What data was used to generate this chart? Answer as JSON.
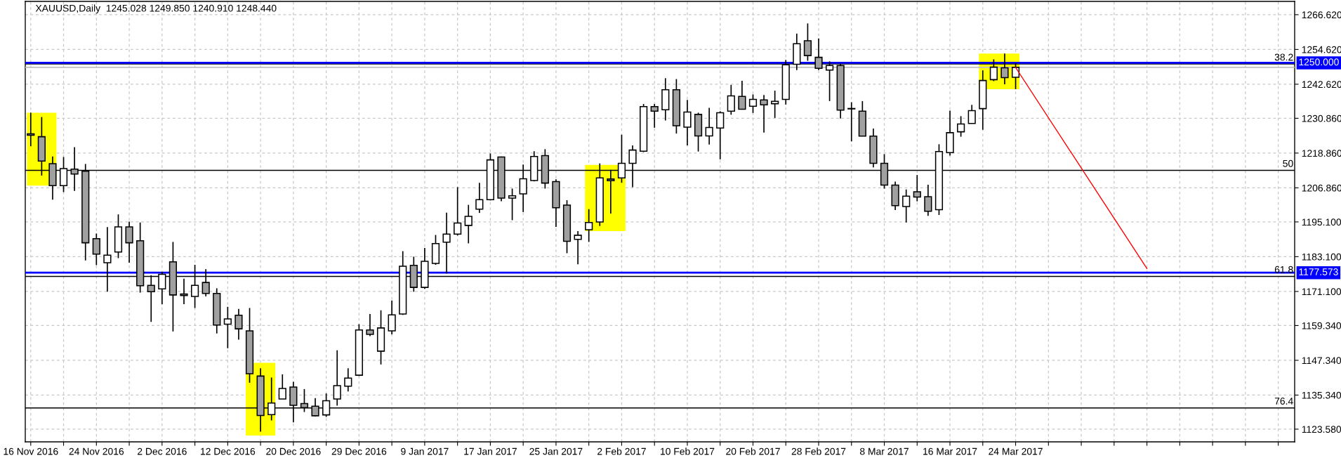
{
  "chart_data": {
    "type": "candlestick",
    "title": "XAUUSD,Daily  1245.028 1249.850 1240.910 1248.440",
    "categories": [
      "16 Nov 2016",
      null,
      null,
      null,
      null,
      null,
      "24 Nov 2016",
      null,
      null,
      null,
      null,
      null,
      "2 Dec 2016",
      null,
      null,
      null,
      null,
      null,
      "12 Dec 2016",
      null,
      null,
      null,
      null,
      null,
      "20 Dec 2016",
      null,
      null,
      null,
      null,
      null,
      "29 Dec 2016",
      null,
      null,
      null,
      null,
      null,
      "9 Jan 2017",
      null,
      null,
      null,
      null,
      null,
      "17 Jan 2017",
      null,
      null,
      null,
      null,
      null,
      "25 Jan 2017",
      null,
      null,
      null,
      null,
      null,
      "2 Feb 2017",
      null,
      null,
      null,
      null,
      null,
      "10 Feb 2017",
      null,
      null,
      null,
      null,
      null,
      "20 Feb 2017",
      null,
      null,
      null,
      null,
      null,
      "28 Feb 2017",
      null,
      null,
      null,
      null,
      null,
      "8 Mar 2017",
      null,
      null,
      null,
      null,
      null,
      "16 Mar 2017",
      null,
      null,
      null,
      null,
      null,
      "24 Mar 2017",
      null,
      null,
      null,
      null,
      null,
      null,
      null,
      null,
      null,
      null,
      null,
      null,
      null,
      null,
      null,
      null,
      null,
      null,
      null,
      null,
      null,
      null,
      null,
      null,
      null
    ],
    "ohlc": [
      [
        1225.5,
        1232.8,
        1221.2,
        1225.0
      ],
      [
        1224.5,
        1231.3,
        1211.1,
        1216.1
      ],
      [
        1215.2,
        1217.7,
        1202.8,
        1207.6
      ],
      [
        1207.6,
        1217.5,
        1205.4,
        1213.5
      ],
      [
        1213.3,
        1220.9,
        1205.8,
        1211.6
      ],
      [
        1212.6,
        1215.1,
        1181.8,
        1187.9
      ],
      [
        1189.3,
        1191.1,
        1180.2,
        1184.0
      ],
      [
        1181.0,
        1193.3,
        1171.0,
        1183.6
      ],
      [
        1184.7,
        1197.7,
        1182.6,
        1193.4
      ],
      [
        1193.4,
        1195.2,
        1181.0,
        1187.9
      ],
      [
        1188.6,
        1194.9,
        1170.7,
        1173.1
      ],
      [
        1173.2,
        1176.7,
        1160.6,
        1171.0
      ],
      [
        1172.0,
        1177.8,
        1166.7,
        1177.0
      ],
      [
        1181.3,
        1188.2,
        1157.3,
        1169.9
      ],
      [
        1170.2,
        1175.5,
        1166.7,
        1169.7
      ],
      [
        1169.4,
        1180.3,
        1165.4,
        1173.2
      ],
      [
        1174.2,
        1178.8,
        1169.4,
        1170.4
      ],
      [
        1170.4,
        1172.2,
        1156.6,
        1159.5
      ],
      [
        1159.8,
        1165.8,
        1151.5,
        1161.6
      ],
      [
        1162.9,
        1165.1,
        1154.5,
        1158.2
      ],
      [
        1157.5,
        1165.4,
        1139.6,
        1142.7
      ],
      [
        1141.9,
        1144.6,
        1122.7,
        1128.3
      ],
      [
        1128.6,
        1141.4,
        1126.6,
        1132.6
      ],
      [
        1134.0,
        1142.5,
        1134.0,
        1137.6
      ],
      [
        1138.1,
        1139.9,
        1125.9,
        1131.8
      ],
      [
        1132.4,
        1137.4,
        1129.5,
        1131.0
      ],
      [
        1131.5,
        1134.3,
        1128.0,
        1128.2
      ],
      [
        1128.5,
        1135.9,
        1127.8,
        1133.4
      ],
      [
        1134.0,
        1150.8,
        1131.7,
        1138.6
      ],
      [
        1138.4,
        1144.6,
        1136.6,
        1141.2
      ],
      [
        1142.2,
        1159.8,
        1141.9,
        1157.8
      ],
      [
        1157.8,
        1163.3,
        1155.7,
        1156.3
      ],
      [
        1150.5,
        1164.6,
        1145.9,
        1158.5
      ],
      [
        1157.5,
        1168.0,
        1156.3,
        1163.0
      ],
      [
        1163.3,
        1185.0,
        1163.0,
        1179.8
      ],
      [
        1180.1,
        1183.1,
        1171.0,
        1172.5
      ],
      [
        1172.5,
        1186.1,
        1172.0,
        1181.5
      ],
      [
        1180.8,
        1190.6,
        1180.3,
        1187.6
      ],
      [
        1188.1,
        1198.3,
        1177.3,
        1190.9
      ],
      [
        1190.9,
        1207.1,
        1190.4,
        1194.7
      ],
      [
        1193.9,
        1201.0,
        1187.7,
        1197.0
      ],
      [
        1199.5,
        1208.6,
        1198.2,
        1202.8
      ],
      [
        1202.8,
        1218.7,
        1202.5,
        1216.5
      ],
      [
        1217.5,
        1217.7,
        1202.2,
        1203.3
      ],
      [
        1203.3,
        1206.6,
        1195.7,
        1204.1
      ],
      [
        1204.8,
        1214.9,
        1198.5,
        1210.0
      ],
      [
        1209.4,
        1219.5,
        1209.1,
        1217.7
      ],
      [
        1218.0,
        1220.2,
        1206.6,
        1208.5
      ],
      [
        1209.0,
        1209.8,
        1193.4,
        1200.0
      ],
      [
        1200.9,
        1202.6,
        1184.3,
        1188.4
      ],
      [
        1189.1,
        1191.9,
        1180.5,
        1190.5
      ],
      [
        1192.4,
        1199.5,
        1188.2,
        1194.9
      ],
      [
        1195.1,
        1215.3,
        1193.7,
        1210.3
      ],
      [
        1209.9,
        1213.1,
        1198.0,
        1209.3
      ],
      [
        1210.3,
        1225.2,
        1208.6,
        1215.3
      ],
      [
        1215.3,
        1221.5,
        1207.1,
        1219.9
      ],
      [
        1219.5,
        1235.8,
        1219.2,
        1234.9
      ],
      [
        1234.9,
        1235.8,
        1227.6,
        1233.3
      ],
      [
        1233.8,
        1244.7,
        1230.1,
        1240.7
      ],
      [
        1240.7,
        1244.4,
        1225.6,
        1228.3
      ],
      [
        1227.8,
        1237.2,
        1221.5,
        1233.0
      ],
      [
        1232.2,
        1232.8,
        1219.4,
        1224.8
      ],
      [
        1224.8,
        1234.5,
        1221.8,
        1227.7
      ],
      [
        1227.5,
        1233.3,
        1216.7,
        1232.8
      ],
      [
        1233.3,
        1242.4,
        1232.1,
        1238.6
      ],
      [
        1238.4,
        1243.8,
        1234.0,
        1234.0
      ],
      [
        1235.0,
        1239.1,
        1232.7,
        1237.4
      ],
      [
        1237.2,
        1238.9,
        1225.9,
        1235.5
      ],
      [
        1235.9,
        1240.4,
        1231.0,
        1236.7
      ],
      [
        1237.4,
        1251.0,
        1235.6,
        1249.3
      ],
      [
        1249.5,
        1260.1,
        1247.5,
        1256.6
      ],
      [
        1257.6,
        1263.6,
        1250.7,
        1252.5
      ],
      [
        1251.9,
        1258.4,
        1247.5,
        1248.1
      ],
      [
        1247.5,
        1250.5,
        1236.8,
        1249.1
      ],
      [
        1249.1,
        1249.7,
        1230.8,
        1233.7
      ],
      [
        1234.2,
        1236.4,
        1222.9,
        1234.1
      ],
      [
        1233.3,
        1236.8,
        1224.7,
        1224.7
      ],
      [
        1224.7,
        1227.3,
        1213.9,
        1215.3
      ],
      [
        1215.3,
        1218.5,
        1206.6,
        1207.8
      ],
      [
        1207.8,
        1209.0,
        1199.2,
        1200.7
      ],
      [
        1200.4,
        1206.3,
        1194.9,
        1204.0
      ],
      [
        1205.5,
        1211.3,
        1202.2,
        1203.7
      ],
      [
        1203.8,
        1207.9,
        1197.2,
        1198.8
      ],
      [
        1199.3,
        1221.9,
        1197.5,
        1219.4
      ],
      [
        1219.0,
        1233.5,
        1218.0,
        1225.9
      ],
      [
        1226.2,
        1231.6,
        1224.5,
        1228.9
      ],
      [
        1229.1,
        1235.5,
        1229.1,
        1233.5
      ],
      [
        1234.2,
        1247.4,
        1226.9,
        1243.9
      ],
      [
        1244.2,
        1251.2,
        1243.7,
        1248.5
      ],
      [
        1248.3,
        1253.2,
        1242.6,
        1244.9
      ],
      [
        1245.028,
        1249.85,
        1240.91,
        1248.44
      ],
      null,
      null,
      null,
      null,
      null,
      null,
      null,
      null,
      null,
      null,
      null,
      null,
      null,
      null,
      null,
      null,
      null,
      null,
      null,
      null,
      null,
      null,
      null,
      null,
      null
    ],
    "colors": [
      "#a0a0a0",
      "#a0a0a0",
      "#a0a0a0",
      "#ffffff",
      "#a0a0a0",
      "#a0a0a0",
      "#a0a0a0",
      "#ffffff",
      "#ffffff",
      "#a0a0a0",
      "#a0a0a0",
      "#a0a0a0",
      "#ffffff",
      "#a0a0a0",
      "#a0a0a0",
      "#ffffff",
      "#a0a0a0",
      "#a0a0a0",
      "#ffffff",
      "#a0a0a0",
      "#a0a0a0",
      "#a0a0a0",
      "#ffffff",
      "#ffffff",
      "#a0a0a0",
      "#a0a0a0",
      "#a0a0a0",
      "#ffffff",
      "#ffffff",
      "#ffffff",
      "#ffffff",
      "#a0a0a0",
      "#ffffff",
      "#ffffff",
      "#ffffff",
      "#a0a0a0",
      "#ffffff",
      "#ffffff",
      "#ffffff",
      "#ffffff",
      "#ffffff",
      "#ffffff",
      "#ffffff",
      "#a0a0a0",
      "#ffffff",
      "#ffffff",
      "#ffffff",
      "#a0a0a0",
      "#a0a0a0",
      "#a0a0a0",
      "#ffffff",
      "#ffffff",
      "#ffffff",
      "#a0a0a0",
      "#ffffff",
      "#ffffff",
      "#ffffff",
      "#a0a0a0",
      "#ffffff",
      "#a0a0a0",
      "#ffffff",
      "#a0a0a0",
      "#ffffff",
      "#ffffff",
      "#ffffff",
      "#a0a0a0",
      "#ffffff",
      "#a0a0a0",
      "#ffffff",
      "#ffffff",
      "#ffffff",
      "#a0a0a0",
      "#a0a0a0",
      "#ffffff",
      "#a0a0a0",
      "#a0a0a0",
      "#a0a0a0",
      "#a0a0a0",
      "#a0a0a0",
      "#a0a0a0",
      "#ffffff",
      "#a0a0a0",
      "#a0a0a0",
      "#ffffff",
      "#ffffff",
      "#ffffff",
      "#ffffff",
      "#ffffff",
      "#ffffff",
      "#a0a0a0",
      "#ffffff",
      null,
      null,
      null,
      null,
      null,
      null,
      null,
      null,
      null,
      null,
      null,
      null,
      null,
      null,
      null,
      null,
      null,
      null,
      null,
      null,
      null,
      null,
      null,
      null,
      null
    ],
    "series": [
      {
        "type": "line",
        "color": "#ff0000",
        "values": [
          null,
          null,
          null,
          null,
          null,
          null,
          null,
          null,
          null,
          null,
          null,
          null,
          null,
          null,
          null,
          null,
          null,
          null,
          null,
          null,
          null,
          null,
          null,
          null,
          null,
          null,
          null,
          null,
          null,
          null,
          null,
          null,
          null,
          null,
          null,
          null,
          null,
          null,
          null,
          null,
          null,
          null,
          null,
          null,
          null,
          null,
          null,
          null,
          null,
          null,
          null,
          null,
          null,
          null,
          null,
          null,
          null,
          null,
          null,
          null,
          null,
          null,
          null,
          null,
          null,
          null,
          null,
          null,
          null,
          null,
          null,
          null,
          null,
          null,
          null,
          null,
          null,
          null,
          null,
          null,
          null,
          null,
          null,
          null,
          null,
          null,
          null,
          null,
          null,
          null,
          1248.4,
          null,
          null,
          null,
          null,
          null,
          null,
          null,
          null,
          null,
          null,
          null,
          1179.0,
          null,
          null,
          null,
          null,
          null,
          null,
          null,
          null,
          null,
          null,
          null,
          null,
          null
        ]
      }
    ],
    "ylim": [
      1119.2,
      1271.2
    ],
    "yticks": [
      {
        "value": 1123.58,
        "label": "1123.580"
      },
      {
        "value": 1135.34,
        "label": "1135.340"
      },
      {
        "value": 1147.34,
        "label": "1147.340"
      },
      {
        "value": 1159.34,
        "label": "1159.340"
      },
      {
        "value": 1171.1,
        "label": "1171.100"
      },
      {
        "value": 1183.1,
        "label": "1183.100"
      },
      {
        "value": 1195.1,
        "label": "1195.100"
      },
      {
        "value": 1206.86,
        "label": "1206.860"
      },
      {
        "value": 1218.86,
        "label": "1218.860"
      },
      {
        "value": 1230.86,
        "label": "1230.860"
      },
      {
        "value": 1242.62,
        "label": "1242.620"
      },
      {
        "value": 1254.62,
        "label": "1254.620"
      },
      {
        "value": 1266.62,
        "label": "1266.620"
      }
    ],
    "grid": true,
    "ref_lines": [
      {
        "axis": "y",
        "value": 1248.44,
        "color": "#c0c0c0"
      },
      {
        "axis": "y",
        "value": 1249.6,
        "color": "#000000"
      },
      {
        "axis": "y",
        "value": 1212.9,
        "color": "#000000"
      },
      {
        "axis": "y",
        "value": 1176.3,
        "color": "#000000"
      },
      {
        "axis": "y",
        "value": 1130.9,
        "color": "#000000"
      },
      {
        "axis": "y",
        "value": 1250.0,
        "label": "1250.000",
        "color": "#0000ff"
      },
      {
        "axis": "y",
        "value": 1177.573,
        "label": "1177.573",
        "color": "#0000ff"
      }
    ],
    "annotations": [
      {
        "text": "38.2",
        "y": 1249.6
      },
      {
        "text": "50",
        "y": 1212.9
      },
      {
        "text": "61.8",
        "y": 1176.3
      },
      {
        "text": "76.4",
        "y": 1130.9
      }
    ]
  }
}
